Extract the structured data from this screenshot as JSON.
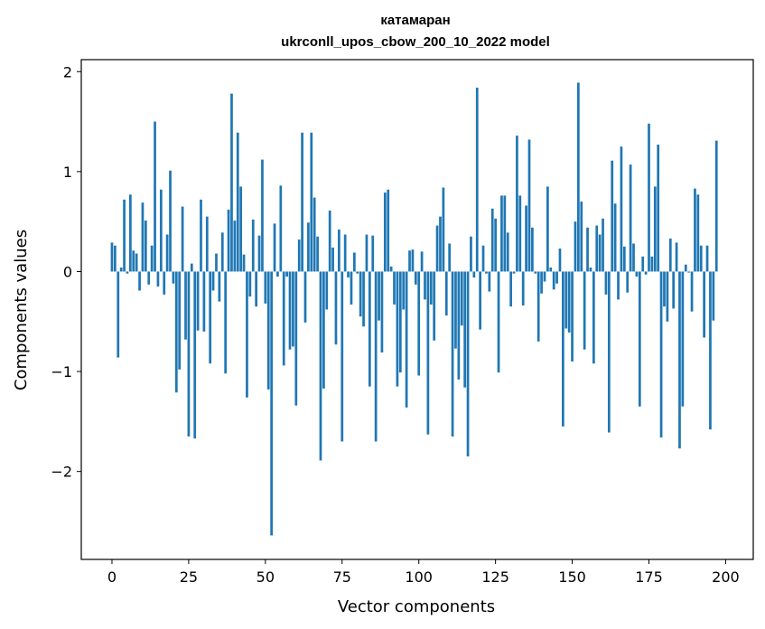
{
  "chart_data": {
    "type": "bar",
    "title": "катамаран",
    "subtitle": "ukrconll_upos_cbow_200_10_2022 model",
    "xlabel": "Vector components",
    "ylabel": "Components values",
    "xlim": [
      -10,
      209
    ],
    "ylim": [
      -2.88,
      2.12
    ],
    "xticks": [
      0,
      25,
      50,
      75,
      100,
      125,
      150,
      175,
      200
    ],
    "yticks": [
      -2,
      -1,
      0,
      1,
      2
    ],
    "ytick_labels": [
      "−2",
      "−1",
      "0",
      "1",
      "2"
    ],
    "grid": false,
    "bar_color": "#1f77b4",
    "series": [
      {
        "x_start": 0,
        "values": [
          0.29,
          0.26,
          -0.86,
          0.04,
          0.72,
          -0.02,
          0.77,
          0.21,
          0.18,
          -0.19,
          0.69,
          0.51,
          -0.13,
          0.26,
          1.5,
          -0.15,
          0.82,
          -0.23,
          0.37,
          1.01,
          -0.12,
          -1.21,
          -0.98,
          0.65,
          -0.68,
          -1.65,
          0.08,
          -1.67,
          -0.59,
          0.72,
          -0.6,
          0.55,
          -0.92,
          -0.19,
          0.18,
          -0.3,
          0.39,
          -1.02,
          0.62,
          1.78,
          0.51,
          1.39,
          0.85,
          0.17,
          -1.26,
          -0.25,
          0.52,
          -0.35,
          0.36,
          1.12,
          -0.32,
          -1.18,
          -2.64,
          0.48,
          -0.05,
          0.86,
          -0.94,
          -0.05,
          -0.78,
          -0.75,
          -1.34,
          0.32,
          1.39,
          -0.51,
          0.49,
          1.39,
          0.74,
          0.35,
          -1.89,
          -1.17,
          -0.38,
          0.61,
          0.24,
          -0.73,
          0.42,
          -1.7,
          0.37,
          -0.06,
          -0.33,
          0.19,
          -0.02,
          -0.45,
          -0.55,
          0.37,
          -1.15,
          0.36,
          -1.7,
          -0.49,
          -0.81,
          0.79,
          0.82,
          0.05,
          -0.33,
          -1.15,
          -1.01,
          -0.38,
          -1.36,
          0.21,
          0.22,
          -0.13,
          -1.04,
          0.2,
          -0.28,
          -1.63,
          -0.33,
          -0.69,
          0.46,
          0.55,
          0.84,
          -0.44,
          0.28,
          -1.65,
          -0.77,
          -1.08,
          -0.54,
          -1.16,
          -1.85,
          0.35,
          -0.06,
          1.84,
          -0.58,
          0.26,
          -0.02,
          -0.2,
          0.63,
          0.53,
          -1.01,
          0.76,
          0.76,
          0.39,
          -0.35,
          -0.02,
          1.36,
          0.76,
          -0.34,
          0.66,
          1.32,
          0.44,
          -0.02,
          -0.7,
          -0.22,
          -0.1,
          0.85,
          0.04,
          -0.18,
          -0.12,
          0.23,
          -1.55,
          -0.57,
          -0.61,
          -0.9,
          0.5,
          1.89,
          0.7,
          -0.78,
          0.44,
          0.04,
          -0.92,
          0.46,
          0.37,
          0.53,
          -0.23,
          -1.61,
          1.11,
          0.68,
          -0.28,
          1.25,
          0.25,
          -0.21,
          1.07,
          0.28,
          -0.05,
          -1.35,
          0.15,
          -0.03,
          1.48,
          0.15,
          0.85,
          1.27,
          -1.66,
          -0.35,
          -0.5,
          0.33,
          -0.37,
          0.29,
          -1.77,
          -1.35,
          0.07,
          -0.01,
          -0.4,
          0.83,
          0.77,
          0.26,
          -0.66,
          0.26,
          -1.58,
          -0.49,
          1.31
        ]
      }
    ]
  }
}
